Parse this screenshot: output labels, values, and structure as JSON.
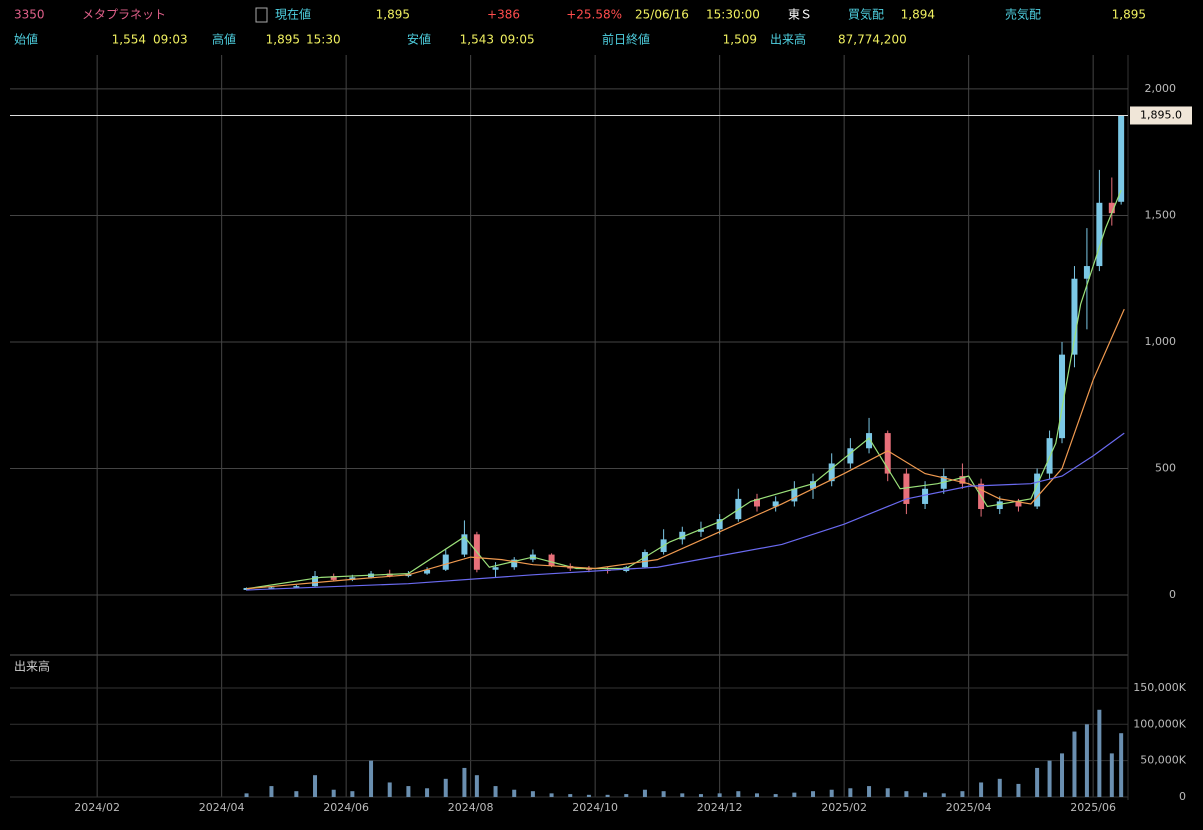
{
  "header": {
    "row1": [
      "3350",
      "メタプラネット",
      "現在値",
      "1,895",
      "+386",
      "+25.58%",
      "25/06/16",
      "15:30:00",
      "東Ｓ",
      "買気配",
      "1,894",
      "売気配",
      "1,895"
    ],
    "row2": [
      "始値",
      "1,554",
      "09:03",
      "高値",
      "1,895",
      "15:30",
      "安値",
      "1,543",
      "09:05",
      "前日終値",
      "1,509",
      "出来高",
      "87,774,200"
    ]
  },
  "chart_data": {
    "type": "candlestick",
    "x": [
      3.4,
      3.8,
      4.2,
      4.5,
      4.8,
      5.1,
      5.4,
      5.7,
      6.0,
      6.3,
      6.6,
      6.9,
      7.1,
      7.4,
      7.7,
      8.0,
      8.3,
      8.6,
      8.9,
      9.2,
      9.5,
      9.8,
      10.1,
      10.4,
      10.7,
      11.0,
      11.3,
      11.6,
      11.9,
      12.2,
      12.5,
      12.8,
      13.1,
      13.4,
      13.7,
      14.0,
      14.3,
      14.6,
      14.9,
      15.2,
      15.5,
      15.8,
      16.1,
      16.3,
      16.5,
      16.7,
      16.9,
      17.1,
      17.3,
      17.45
    ],
    "open": [
      20,
      28,
      30,
      35,
      75,
      60,
      70,
      85,
      75,
      85,
      100,
      160,
      240,
      100,
      110,
      140,
      160,
      115,
      105,
      100,
      95,
      110,
      170,
      220,
      250,
      260,
      300,
      380,
      350,
      370,
      420,
      450,
      520,
      580,
      640,
      480,
      360,
      420,
      470,
      440,
      340,
      370,
      350,
      480,
      620,
      950,
      1250,
      1300,
      1550,
      1554
    ],
    "high": [
      30,
      35,
      40,
      95,
      85,
      80,
      95,
      100,
      95,
      110,
      180,
      295,
      250,
      130,
      150,
      180,
      165,
      125,
      115,
      110,
      115,
      180,
      260,
      270,
      290,
      320,
      420,
      400,
      390,
      450,
      480,
      560,
      620,
      700,
      650,
      500,
      450,
      500,
      520,
      460,
      390,
      380,
      500,
      650,
      1000,
      1300,
      1450,
      1680,
      1650,
      1895
    ],
    "low": [
      18,
      25,
      28,
      33,
      55,
      55,
      65,
      70,
      70,
      80,
      95,
      150,
      90,
      70,
      100,
      130,
      110,
      95,
      90,
      85,
      90,
      105,
      160,
      200,
      230,
      240,
      290,
      330,
      330,
      350,
      380,
      430,
      500,
      560,
      450,
      320,
      340,
      400,
      420,
      310,
      320,
      330,
      340,
      460,
      600,
      900,
      1050,
      1280,
      1460,
      1543
    ],
    "close": [
      28,
      30,
      35,
      75,
      60,
      70,
      85,
      75,
      85,
      100,
      160,
      240,
      100,
      110,
      140,
      160,
      115,
      105,
      100,
      95,
      110,
      170,
      220,
      250,
      260,
      300,
      380,
      350,
      370,
      420,
      450,
      520,
      580,
      640,
      480,
      360,
      420,
      470,
      440,
      340,
      370,
      350,
      480,
      620,
      950,
      1250,
      1300,
      1550,
      1509,
      1895
    ],
    "up_color": "#7cc8e6",
    "down_color": "#e8707a",
    "xlim": [
      -0.4,
      17.56
    ],
    "xticks": [
      {
        "value": 1,
        "label": "2024/02"
      },
      {
        "value": 3,
        "label": "2024/04"
      },
      {
        "value": 5,
        "label": "2024/06"
      },
      {
        "value": 7,
        "label": "2024/08"
      },
      {
        "value": 9,
        "label": "2024/10"
      },
      {
        "value": 11,
        "label": "2024/12"
      },
      {
        "value": 13,
        "label": "2025/02"
      },
      {
        "value": 15,
        "label": "2025/04"
      },
      {
        "value": 17,
        "label": "2025/06"
      }
    ],
    "ylim": [
      -225,
      2134
    ],
    "yticks": [
      0,
      500,
      {
        "value": 1000,
        "label": "1,000"
      },
      {
        "value": 1500,
        "label": "1,500"
      },
      {
        "value": 2000,
        "label": "2,000"
      }
    ],
    "grid": true,
    "lines": [
      {
        "color": "#9be07a",
        "x": [
          3.4,
          4.6,
          6.0,
          6.9,
          7.3,
          8.0,
          8.7,
          9.5,
          10.2,
          11.0,
          11.5,
          12.5,
          13.4,
          13.9,
          14.5,
          15.0,
          15.3,
          16.0,
          16.4,
          16.8,
          17.2,
          17.45
        ],
        "values": [
          25,
          70,
          85,
          230,
          110,
          150,
          105,
          105,
          210,
          290,
          370,
          440,
          620,
          420,
          440,
          470,
          350,
          380,
          600,
          1150,
          1450,
          1600
        ]
      },
      {
        "color": "#f09a50",
        "x": [
          3.4,
          5.0,
          6.0,
          7.0,
          7.5,
          8.0,
          9.0,
          10.0,
          11.0,
          12.0,
          13.0,
          13.7,
          14.3,
          15.0,
          15.5,
          16.0,
          16.5,
          17.0,
          17.5
        ],
        "values": [
          25,
          60,
          80,
          150,
          140,
          120,
          105,
          140,
          250,
          360,
          480,
          570,
          480,
          440,
          380,
          360,
          500,
          850,
          1130
        ]
      },
      {
        "color": "#6a6af0",
        "x": [
          3.4,
          6.0,
          8.0,
          10.0,
          12.0,
          13.0,
          14.0,
          15.0,
          16.0,
          16.5,
          17.0,
          17.5
        ],
        "values": [
          20,
          45,
          80,
          110,
          200,
          280,
          380,
          430,
          440,
          470,
          550,
          640
        ]
      }
    ],
    "last_price": {
      "value": 1895,
      "label": "1,895.0"
    },
    "volume": {
      "title": "出来高",
      "color": "#6a8fb0",
      "values": [
        5000,
        15000,
        8000,
        30000,
        10000,
        8000,
        50000,
        20000,
        15000,
        12000,
        25000,
        40000,
        30000,
        15000,
        10000,
        8000,
        5000,
        4000,
        3000,
        3000,
        4000,
        10000,
        8000,
        5000,
        4000,
        5000,
        8000,
        5000,
        4000,
        6000,
        8000,
        10000,
        12000,
        15000,
        12000,
        8000,
        6000,
        5000,
        8000,
        20000,
        25000,
        18000,
        40000,
        50000,
        60000,
        90000,
        100000,
        120000,
        60000,
        87774
      ],
      "ylim": [
        0,
        192600
      ],
      "yticks": [
        0,
        {
          "value": 50000,
          "label": "50,000K"
        },
        {
          "value": 100000,
          "label": "100,000K"
        },
        {
          "value": 150000,
          "label": "150,000K"
        }
      ]
    }
  }
}
